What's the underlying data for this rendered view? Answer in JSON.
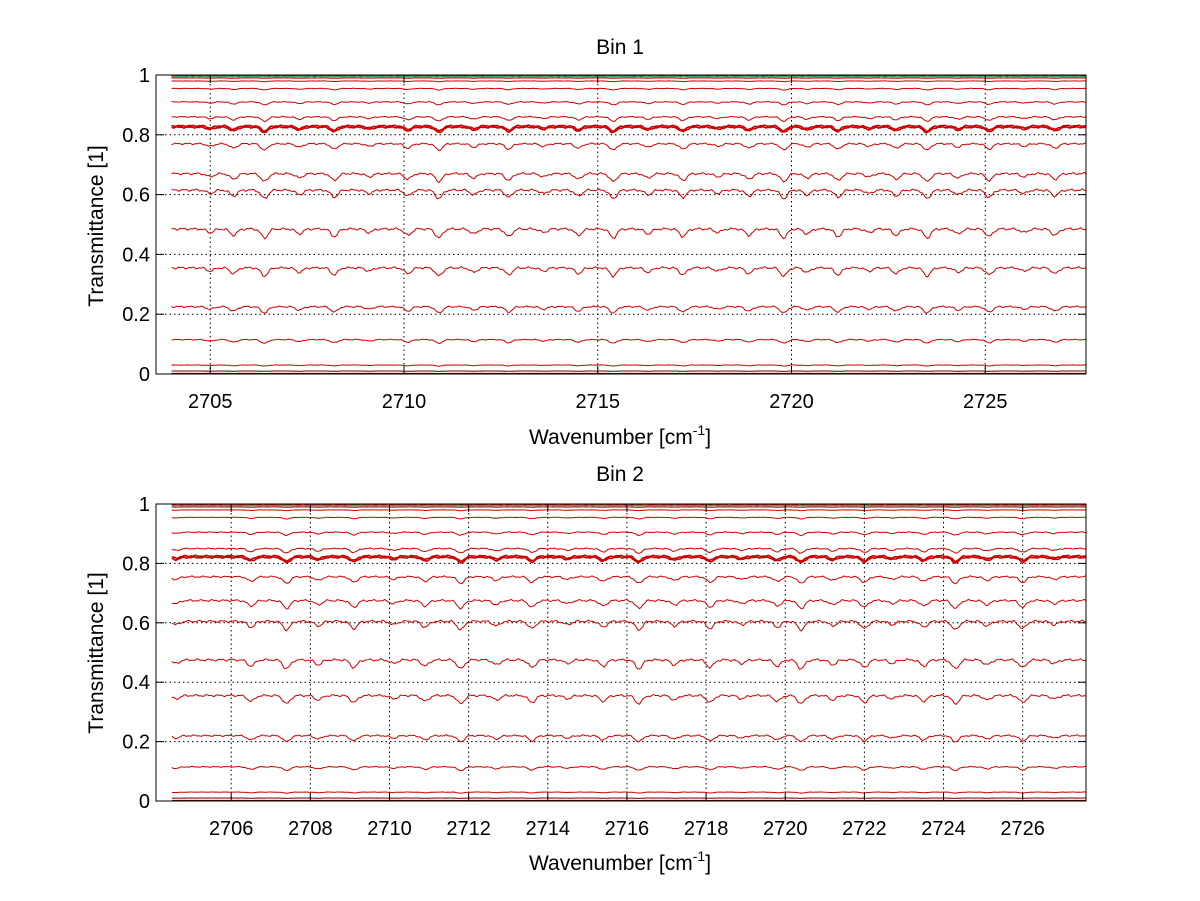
{
  "chart_data": [
    {
      "type": "line",
      "title": "Bin 1",
      "xlabel": "Wavenumber [cm",
      "xlabel_sup": "-1",
      "xlabel_end": "]",
      "ylabel": "Transmittance [1]",
      "xlim": [
        2703.6,
        2727.6
      ],
      "ylim": [
        0,
        1
      ],
      "xticks": [
        2705,
        2710,
        2715,
        2720,
        2725
      ],
      "yticks": [
        0,
        0.2,
        0.4,
        0.6,
        0.8,
        1
      ],
      "ytick_labels": [
        "0",
        "0.2",
        "0.4",
        "0.6",
        "0.8",
        "1"
      ],
      "grid": true,
      "x_start": 2704.0,
      "x_end": 2727.6,
      "absorption_lines": [
        2705.0,
        2705.6,
        2706.4,
        2707.3,
        2708.2,
        2709.1,
        2710.1,
        2710.9,
        2711.8,
        2712.7,
        2713.6,
        2714.5,
        2715.4,
        2716.3,
        2717.2,
        2718.1,
        2718.9,
        2719.8,
        2720.4,
        2721.2,
        2722.0,
        2722.7,
        2723.5,
        2724.3,
        2725.1,
        2726.0,
        2726.8
      ],
      "series_levels": [
        1.0,
        0.998,
        0.995,
        0.99,
        0.98,
        0.955,
        0.91,
        0.86,
        0.83,
        0.825,
        0.77,
        0.67,
        0.615,
        0.485,
        0.355,
        0.225,
        0.115,
        0.03,
        0.01,
        0.002
      ]
    },
    {
      "type": "line",
      "title": "Bin 2",
      "xlabel": "Wavenumber [cm",
      "xlabel_sup": "-1",
      "xlabel_end": "]",
      "ylabel": "Transmittance [1]",
      "xlim": [
        2704.1,
        2727.6
      ],
      "ylim": [
        0,
        1
      ],
      "xticks": [
        2706,
        2708,
        2710,
        2712,
        2714,
        2716,
        2718,
        2720,
        2722,
        2724,
        2726
      ],
      "yticks": [
        0,
        0.2,
        0.4,
        0.6,
        0.8,
        1
      ],
      "ytick_labels": [
        "0",
        "0.2",
        "0.4",
        "0.6",
        "0.8",
        "1"
      ],
      "grid": true,
      "x_start": 2704.5,
      "x_end": 2727.6,
      "absorption_lines": [
        2704.6,
        2706.5,
        2707.4,
        2708.2,
        2709.1,
        2710.1,
        2710.9,
        2711.8,
        2712.7,
        2713.6,
        2714.5,
        2715.4,
        2716.3,
        2717.2,
        2718.1,
        2718.9,
        2719.8,
        2720.4,
        2721.2,
        2722.0,
        2722.7,
        2723.5,
        2724.3,
        2725.1,
        2726.0,
        2726.8
      ],
      "series_levels": [
        1.0,
        0.998,
        0.995,
        0.99,
        0.98,
        0.955,
        0.905,
        0.85,
        0.825,
        0.82,
        0.755,
        0.675,
        0.605,
        0.475,
        0.355,
        0.22,
        0.115,
        0.03,
        0.01,
        0.002
      ]
    }
  ],
  "colors": {
    "series_main": "#cc0000",
    "series_dark": "#6b0000",
    "top_highlights": [
      "#ff8000",
      "#ffcc00",
      "#3399ff",
      "#00aa66"
    ],
    "grid": "#000000",
    "axes": "#000000"
  }
}
